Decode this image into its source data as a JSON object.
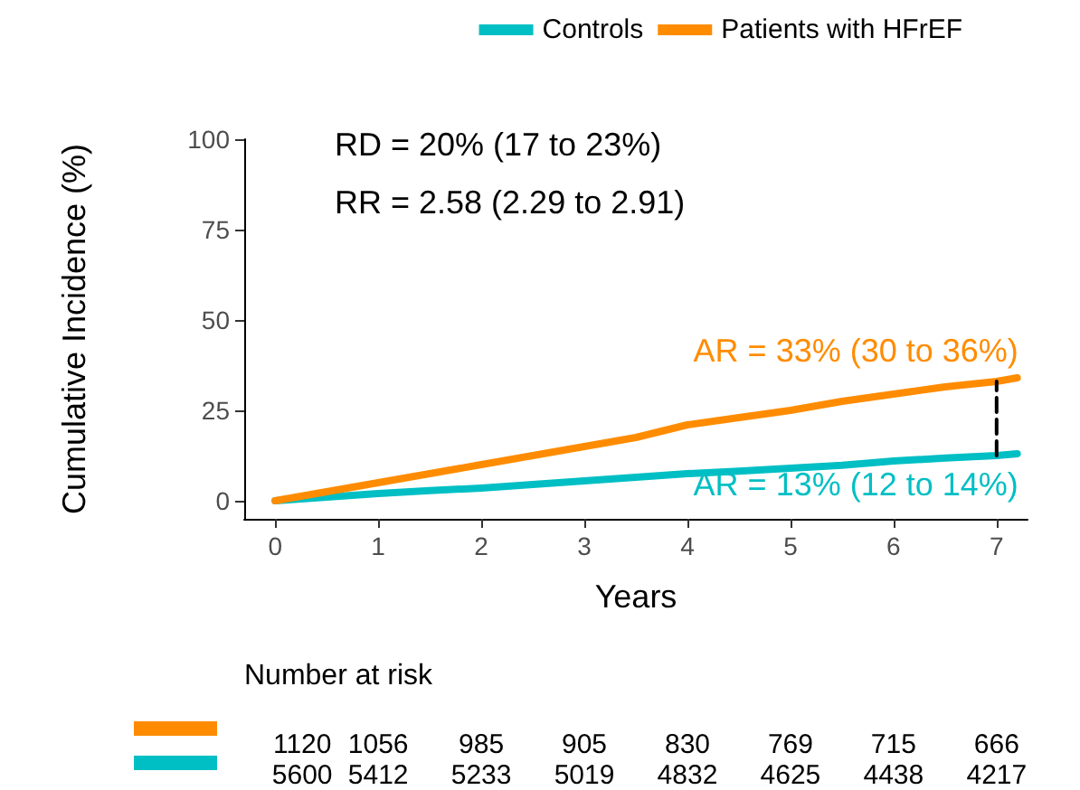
{
  "chart_data": {
    "type": "line",
    "xlabel": "Years",
    "ylabel": "Cumulative Incidence (%)",
    "xlim": [
      -0.3,
      7.3
    ],
    "xticks": [
      0,
      1,
      2,
      3,
      4,
      5,
      6,
      7
    ],
    "ylim": [
      -5,
      100
    ],
    "yticks": [
      0,
      25,
      50,
      75,
      100
    ],
    "grid": false,
    "legend": "top",
    "marker": "none",
    "series": [
      {
        "name": "Controls",
        "color": "#00bfc4",
        "x": [
          0,
          0.5,
          1,
          1.5,
          2,
          2.5,
          3,
          3.5,
          4,
          4.5,
          5,
          5.5,
          6,
          6.5,
          7,
          7.2
        ],
        "values": [
          0,
          1,
          2,
          2.8,
          3.5,
          4.5,
          5.5,
          6.5,
          7.5,
          8.2,
          9,
          9.8,
          11,
          11.8,
          12.5,
          13
        ]
      },
      {
        "name": "Patients with HFrEF",
        "color": "#ff8c00",
        "x": [
          0,
          0.5,
          1,
          1.5,
          2,
          2.5,
          3,
          3.5,
          4,
          4.5,
          5,
          5.5,
          6,
          6.5,
          7,
          7.2
        ],
        "values": [
          0,
          2.5,
          5,
          7.5,
          10,
          12.5,
          15,
          17.5,
          21,
          23,
          25,
          27.5,
          29.5,
          31.5,
          33,
          34
        ]
      },
      {
        "color": "#000000",
        "line_style": "dashed",
        "x": [
          7,
          7
        ],
        "values": [
          12.5,
          33
        ]
      }
    ],
    "annotations": [
      "RD = 20% (17 to 23%)",
      "RR = 2.58 (2.29 to 2.91)",
      {
        "text": "AR = 13% (12 to 14%)",
        "x": 7,
        "y": 13
      },
      {
        "text": "AR = 33% (30 to 36%)",
        "x": 7,
        "y": 33
      },
      "Number at risk",
      "1120 1056 985 905 830 769 715 666",
      "5600 5412 5233 5019 4832 4625 4438 4217"
    ]
  }
}
